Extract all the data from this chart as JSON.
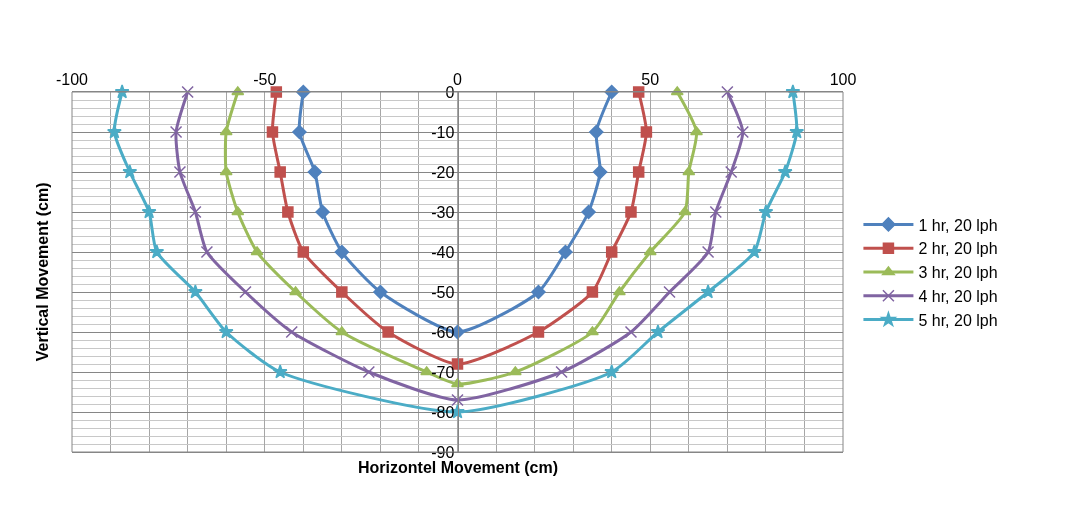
{
  "chart_data": {
    "type": "line",
    "xlabel": "Horizontel Movement (cm)",
    "ylabel": "Vertical Movement (cm)",
    "xlim": [
      -100,
      100
    ],
    "xticks": [
      -100,
      -50,
      0,
      50,
      100
    ],
    "ylim": [
      -90,
      0
    ],
    "yticks": [
      0,
      -10,
      -20,
      -30,
      -40,
      -50,
      -60,
      -70,
      -80,
      -90
    ],
    "grid": true,
    "legend": "right",
    "line_style": "solid",
    "series": [
      {
        "name": "1 hr, 20 lph",
        "color": "#4f81bd",
        "marker": "diamond",
        "x": [
          -40,
          -41,
          -37,
          -35,
          -30,
          -20,
          0,
          21,
          28,
          34,
          37,
          36,
          40
        ],
        "values": [
          0,
          -10,
          -20,
          -30,
          -40,
          -50,
          -60,
          -50,
          -40,
          -30,
          -20,
          -10,
          0
        ]
      },
      {
        "name": "2 hr, 20 lph",
        "color": "#c0504d",
        "marker": "square",
        "x": [
          -47,
          -48,
          -46,
          -44,
          -40,
          -30,
          -18,
          0,
          21,
          35,
          40,
          45,
          47,
          49,
          47
        ],
        "values": [
          0,
          -10,
          -20,
          -30,
          -40,
          -50,
          -60,
          -68,
          -60,
          -50,
          -40,
          -30,
          -20,
          -10,
          0
        ]
      },
      {
        "name": "3 hr, 20 lph",
        "color": "#9bbb59",
        "marker": "triangle",
        "x": [
          -57,
          -60,
          -60,
          -57,
          -52,
          -42,
          -30,
          -8,
          0,
          15,
          35,
          42,
          50,
          59,
          60,
          62,
          57
        ],
        "values": [
          0,
          -10,
          -20,
          -30,
          -40,
          -50,
          -60,
          -70,
          -73,
          -70,
          -60,
          -50,
          -40,
          -30,
          -20,
          -10,
          0
        ]
      },
      {
        "name": "4 hr, 20 lph",
        "color": "#8064a2",
        "marker": "cross",
        "x": [
          -70,
          -73,
          -72,
          -68,
          -65,
          -55,
          -43,
          -23,
          0,
          27,
          45,
          55,
          65,
          67,
          71,
          74,
          70
        ],
        "values": [
          0,
          -10,
          -20,
          -30,
          -40,
          -50,
          -60,
          -70,
          -77,
          -70,
          -60,
          -50,
          -40,
          -30,
          -20,
          -10,
          0
        ]
      },
      {
        "name": "5 hr, 20 lph",
        "color": "#4bacc6",
        "marker": "star",
        "x": [
          -87,
          -89,
          -85,
          -80,
          -78,
          -68,
          -60,
          -46,
          0,
          40,
          52,
          65,
          77,
          80,
          85,
          88,
          87
        ],
        "values": [
          0,
          -10,
          -20,
          -30,
          -40,
          -50,
          -60,
          -70,
          -80,
          -70,
          -60,
          -50,
          -40,
          -30,
          -20,
          -10,
          0
        ]
      }
    ]
  }
}
